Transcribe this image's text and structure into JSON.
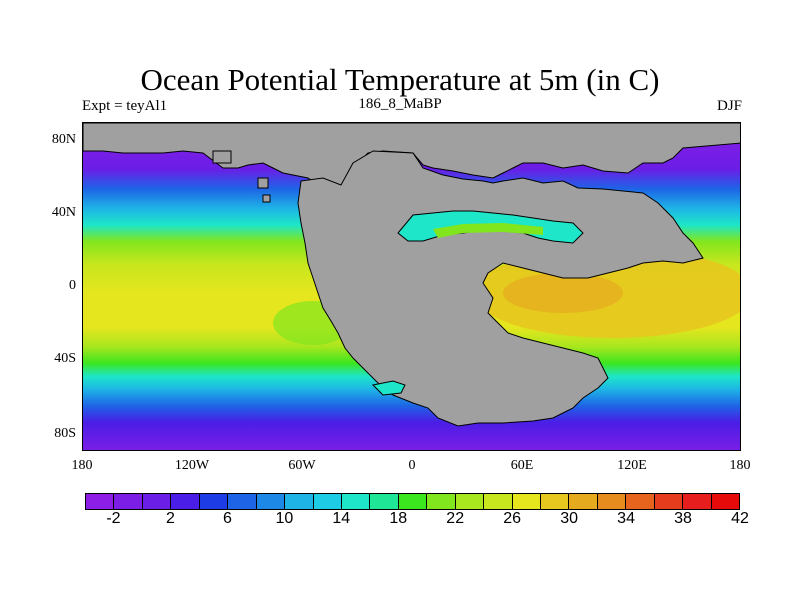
{
  "title": "Ocean Potential Temperature at 5m (in C)",
  "subtitle_left": "Expt = teyAl1",
  "subtitle_center": "186_8_MaBP",
  "subtitle_right": "DJF",
  "map": {
    "land_color": "#a0a0a0",
    "lat_labels": [
      "80N",
      "40N",
      "0",
      "40S",
      "80S"
    ],
    "lon_labels": [
      "180",
      "120W",
      "60W",
      "0",
      "60E",
      "120E",
      "180"
    ]
  },
  "colorbar": {
    "colors": [
      "#8c1ee6",
      "#7d1ee6",
      "#6a1ee6",
      "#4a1ee6",
      "#1e3ce6",
      "#1e64e6",
      "#1e88e6",
      "#1eb4e6",
      "#1ecce6",
      "#1ee6c8",
      "#1ee696",
      "#3ce61e",
      "#82e61e",
      "#a8e61e",
      "#c8e61e",
      "#e6e61e",
      "#e6c81e",
      "#e6aa1e",
      "#e68c1e",
      "#e6641e",
      "#e63c1e",
      "#e61e1e",
      "#e60a0a"
    ],
    "labels": [
      "-2",
      "2",
      "6",
      "10",
      "14",
      "18",
      "22",
      "26",
      "30",
      "34",
      "38",
      "42"
    ]
  }
}
